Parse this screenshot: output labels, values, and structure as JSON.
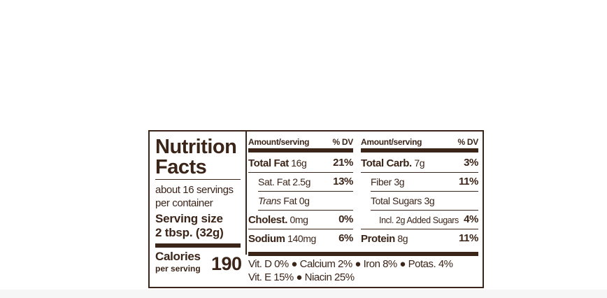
{
  "label": {
    "title_line1": "Nutrition",
    "title_line2": "Facts",
    "servings_line1": "about 16 servings",
    "servings_line2": "per container",
    "serving_size_label": "Serving size",
    "serving_size_value": "2 tbsp. (32g)",
    "calories_label": "Calories",
    "calories_sub": "per serving",
    "calories_value": "190",
    "header_amount": "Amount/serving",
    "header_dv": "% DV",
    "col_a": [
      {
        "name": "Total Fat",
        "amount": " 16g",
        "dv": "21%"
      },
      {
        "name": "Sat. Fat 2.5g",
        "dv": "13%"
      },
      {
        "name_italic": "Trans",
        "name": " Fat 0g",
        "dv": ""
      },
      {
        "name": "Cholest.",
        "amount": " 0mg",
        "dv": "0%"
      },
      {
        "name": "Sodium",
        "amount": " 140mg",
        "dv": "6%"
      }
    ],
    "col_b": [
      {
        "name": "Total Carb.",
        "amount": " 7g",
        "dv": "3%"
      },
      {
        "name": "Fiber 3g",
        "dv": "11%"
      },
      {
        "name": "Total Sugars 3g",
        "dv": ""
      },
      {
        "name": "Incl. 2g Added Sugars",
        "dv": "4%"
      },
      {
        "name": "Protein",
        "amount": " 8g",
        "dv": "11%"
      }
    ],
    "vitamins_line1": "Vit. D 0% ● Calcium 2% ● Iron 8% ● Potas. 4%",
    "vitamins_line2": "Vit. E 15% ● Niacin 25%"
  }
}
